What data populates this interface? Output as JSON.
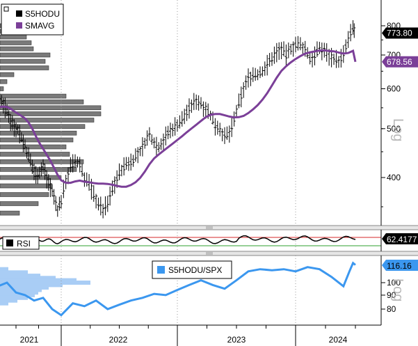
{
  "colors": {
    "price": "#000000",
    "sma": "#7b3f98",
    "rsi_line": "#000000",
    "rsi_upper": "#d62728",
    "rsi_lower": "#2ca02c",
    "ratio": "#3b97ef",
    "volume_profile": "#7a7a7a",
    "ratio_profile": "#a9cdf5"
  },
  "chart_data": [
    {
      "type": "ohlc",
      "scale": "log",
      "scale_label": "Log",
      "legend": [
        {
          "label": "S5HODU",
          "color": "#000000",
          "icon": "black-square-icon"
        },
        {
          "label": "SMAVG",
          "color": "#7b3f98",
          "icon": "purple-square-icon"
        }
      ],
      "y_ticks": [
        {
          "value": 400,
          "label": "400"
        },
        {
          "value": 500,
          "label": "500"
        },
        {
          "value": 600,
          "label": "600"
        },
        {
          "value": 700,
          "label": "700"
        },
        {
          "value": 800,
          "label": "800"
        }
      ],
      "ylim": [
        330,
        830
      ],
      "last_value": {
        "value": 773.8,
        "label": "773.80"
      },
      "sma_last": {
        "value": 678.56,
        "label": "678.56"
      },
      "price_weekly": [
        [
          2021.0,
          550
        ],
        [
          2021.04,
          560
        ],
        [
          2021.08,
          575
        ],
        [
          2021.12,
          555
        ],
        [
          2021.16,
          535
        ],
        [
          2021.2,
          520
        ],
        [
          2021.24,
          540
        ],
        [
          2021.28,
          560
        ],
        [
          2021.32,
          575
        ],
        [
          2021.36,
          560
        ],
        [
          2021.4,
          540
        ],
        [
          2021.44,
          520
        ],
        [
          2021.48,
          505
        ],
        [
          2021.52,
          500
        ],
        [
          2021.56,
          480
        ],
        [
          2021.6,
          460
        ],
        [
          2021.64,
          440
        ],
        [
          2021.68,
          420
        ],
        [
          2021.72,
          405
        ],
        [
          2021.76,
          410
        ],
        [
          2021.8,
          420
        ],
        [
          2021.84,
          400
        ],
        [
          2021.88,
          385
        ],
        [
          2021.92,
          365
        ],
        [
          2021.96,
          345
        ],
        [
          2022.0,
          360
        ],
        [
          2022.04,
          395
        ],
        [
          2022.08,
          420
        ],
        [
          2022.12,
          430
        ],
        [
          2022.16,
          425
        ],
        [
          2022.2,
          400
        ],
        [
          2022.24,
          390
        ],
        [
          2022.28,
          370
        ],
        [
          2022.32,
          355
        ],
        [
          2022.36,
          345
        ],
        [
          2022.4,
          355
        ],
        [
          2022.44,
          380
        ],
        [
          2022.48,
          400
        ],
        [
          2022.52,
          415
        ],
        [
          2022.56,
          425
        ],
        [
          2022.6,
          430
        ],
        [
          2022.64,
          440
        ],
        [
          2022.68,
          450
        ],
        [
          2022.72,
          470
        ],
        [
          2022.76,
          485
        ],
        [
          2022.8,
          470
        ],
        [
          2022.84,
          460
        ],
        [
          2022.88,
          475
        ],
        [
          2022.92,
          490
        ],
        [
          2022.96,
          500
        ],
        [
          2023.0,
          510
        ],
        [
          2023.04,
          520
        ],
        [
          2023.08,
          540
        ],
        [
          2023.12,
          555
        ],
        [
          2023.16,
          570
        ],
        [
          2023.2,
          560
        ],
        [
          2023.24,
          550
        ],
        [
          2023.28,
          530
        ],
        [
          2023.32,
          510
        ],
        [
          2023.36,
          500
        ],
        [
          2023.4,
          480
        ],
        [
          2023.44,
          490
        ],
        [
          2023.48,
          520
        ],
        [
          2023.52,
          560
        ],
        [
          2023.56,
          600
        ],
        [
          2023.6,
          630
        ],
        [
          2023.64,
          640
        ],
        [
          2023.68,
          640
        ],
        [
          2023.72,
          650
        ],
        [
          2023.76,
          670
        ],
        [
          2023.8,
          690
        ],
        [
          2023.84,
          710
        ],
        [
          2023.88,
          720
        ],
        [
          2023.92,
          700
        ],
        [
          2023.96,
          720
        ],
        [
          2024.0,
          735
        ],
        [
          2024.04,
          730
        ],
        [
          2024.08,
          720
        ],
        [
          2024.12,
          690
        ],
        [
          2024.16,
          700
        ],
        [
          2024.2,
          720
        ],
        [
          2024.24,
          715
        ],
        [
          2024.28,
          700
        ],
        [
          2024.32,
          690
        ],
        [
          2024.36,
          680
        ],
        [
          2024.4,
          700
        ],
        [
          2024.44,
          750
        ],
        [
          2024.48,
          790
        ],
        [
          2024.5,
          773.8
        ]
      ]
    },
    {
      "type": "line",
      "name": "RSI",
      "legend": [
        {
          "label": "RSI",
          "color": "#000000",
          "icon": "black-square-icon"
        }
      ],
      "last_value": {
        "value": 62.4177,
        "label": "62.4177"
      },
      "upper_band": 70,
      "lower_band": 30,
      "ylim": [
        10,
        90
      ]
    },
    {
      "type": "line",
      "name": "S5HODU/SPX",
      "legend": [
        {
          "label": "S5HODU/SPX",
          "color": "#3b97ef",
          "icon": "blue-square-icon"
        }
      ],
      "y_ticks": [
        {
          "value": 80,
          "label": "80"
        },
        {
          "value": 90,
          "label": "90"
        },
        {
          "value": 100,
          "label": "100"
        }
      ],
      "scale_label": "Log",
      "ylim": [
        73,
        125
      ],
      "last_value": {
        "value": 116.16,
        "label": "116.16"
      }
    }
  ],
  "x_axis": {
    "labels": [
      {
        "year": 2021,
        "label": "2021"
      },
      {
        "year": 2022,
        "label": "2022"
      },
      {
        "year": 2023,
        "label": "2023"
      },
      {
        "year": 2024,
        "label": "2024"
      }
    ]
  }
}
